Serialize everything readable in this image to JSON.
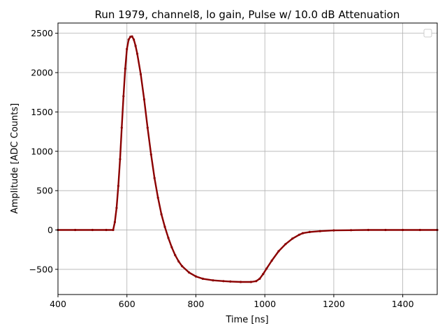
{
  "chart_data": {
    "type": "scatter",
    "title": "Run 1979, channel8, lo gain, Pulse w/ 10.0 dB Attenuation",
    "xlabel": "Time [ns]",
    "ylabel": "Amplitude [ADC Counts]",
    "xlim": [
      400,
      1500
    ],
    "ylim": [
      -820,
      2630
    ],
    "xticks": [
      400,
      600,
      800,
      1000,
      1200,
      1400
    ],
    "yticks": [
      -500,
      0,
      500,
      1000,
      1500,
      2000,
      2500
    ],
    "grid": true,
    "legend": "top-right (empty)",
    "series": [
      {
        "color": "#8b0000",
        "x": [
          400,
          450,
          500,
          540,
          560,
          565,
          570,
          575,
          580,
          585,
          590,
          595,
          600,
          605,
          610,
          615,
          620,
          625,
          630,
          640,
          650,
          660,
          670,
          680,
          690,
          700,
          710,
          720,
          730,
          740,
          750,
          760,
          780,
          800,
          820,
          850,
          880,
          900,
          930,
          960,
          975,
          985,
          995,
          1005,
          1020,
          1040,
          1060,
          1080,
          1100,
          1110,
          1130,
          1160,
          1200,
          1250,
          1300,
          1350,
          1400,
          1450,
          1500
        ],
        "y": [
          0,
          0,
          0,
          0,
          0,
          100,
          280,
          560,
          900,
          1300,
          1700,
          2050,
          2300,
          2420,
          2455,
          2460,
          2420,
          2340,
          2240,
          1980,
          1660,
          1300,
          960,
          660,
          410,
          200,
          40,
          -100,
          -220,
          -320,
          -400,
          -460,
          -540,
          -590,
          -620,
          -640,
          -650,
          -655,
          -660,
          -660,
          -650,
          -620,
          -560,
          -490,
          -390,
          -270,
          -180,
          -110,
          -60,
          -40,
          -25,
          -15,
          -5,
          -2,
          0,
          0,
          0,
          0,
          0
        ]
      }
    ]
  }
}
